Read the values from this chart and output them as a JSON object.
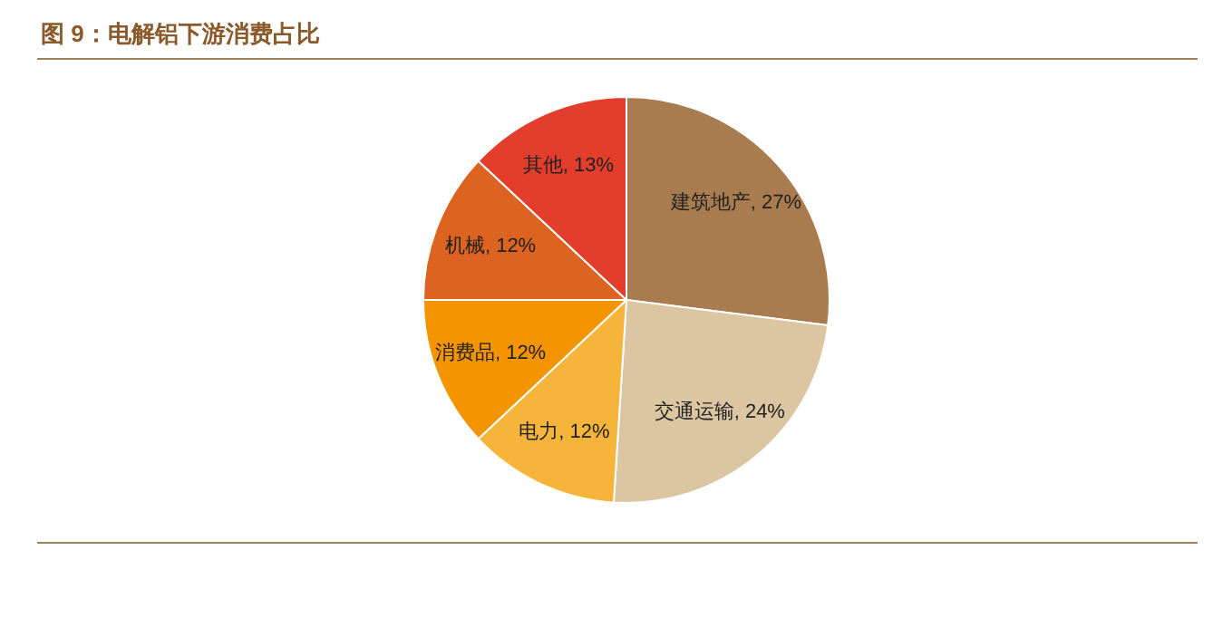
{
  "chart_data": {
    "type": "pie",
    "title": "图 9：电解铝下游消费占比",
    "categories": [
      "建筑地产",
      "交通运输",
      "电力",
      "消费品",
      "机械",
      "其他"
    ],
    "values": [
      27,
      24,
      12,
      12,
      12,
      13
    ],
    "value_labels": [
      "27%",
      "24%",
      "12%",
      "12%",
      "12%",
      "13%"
    ],
    "colors": [
      "#a97c50",
      "#dcc6a2",
      "#f6b53a",
      "#f39400",
      "#dd6320",
      "#e23e2b"
    ]
  }
}
